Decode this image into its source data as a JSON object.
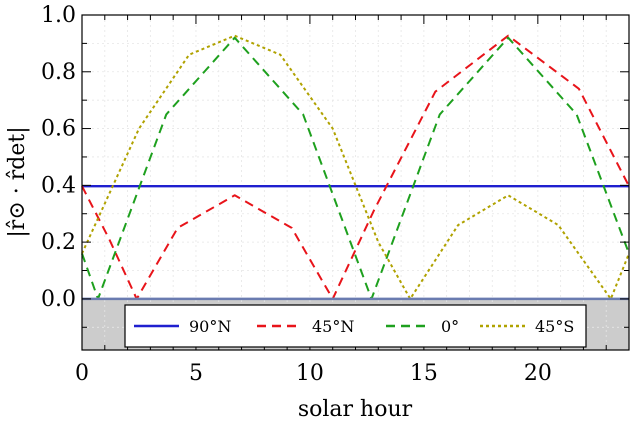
{
  "chart_data": {
    "type": "line",
    "xlabel": "solar hour",
    "ylabel": "|r̂⊙ · r̂det|",
    "xlim": [
      0,
      24
    ],
    "ylim": [
      -0.18,
      1.0
    ],
    "x_ticks": [
      0,
      5,
      10,
      15,
      20
    ],
    "y_ticks": [
      0.0,
      0.2,
      0.4,
      0.6,
      0.8,
      1.0
    ],
    "x_tick_labels": [
      "0",
      "5",
      "10",
      "15",
      "20"
    ],
    "y_tick_labels": [
      "0.0",
      "0.2",
      "0.4",
      "0.6",
      "0.8",
      "1.0"
    ],
    "grid": true,
    "legend_position": "bottom-center",
    "shaded_region": {
      "y_from": -0.18,
      "y_to": 0.0,
      "color": "#cccccc"
    },
    "series": [
      {
        "name": "90°N",
        "color": "#1f1fcf",
        "style": "solid",
        "x": [
          0,
          24
        ],
        "y": [
          0.397,
          0.397
        ]
      },
      {
        "name": "45°N",
        "color": "#e8141a",
        "style": "dashed",
        "x": [
          0,
          1.2,
          2.4,
          4.2,
          6.7,
          9.2,
          11.0,
          12.8,
          15.5,
          18.7,
          21.8,
          24
        ],
        "y": [
          0.397,
          0.21,
          0.0,
          0.25,
          0.365,
          0.25,
          0.0,
          0.31,
          0.73,
          0.927,
          0.74,
          0.397
        ]
      },
      {
        "name": "0°",
        "color": "#1ea01e",
        "style": "dashed",
        "x": [
          0,
          0.7,
          3.7,
          6.7,
          9.7,
          12.7,
          15.7,
          18.7,
          21.7,
          24
        ],
        "y": [
          0.16,
          0.0,
          0.65,
          0.92,
          0.65,
          0.0,
          0.65,
          0.92,
          0.65,
          0.16
        ]
      },
      {
        "name": "45°S",
        "color": "#b0a200",
        "style": "dotted",
        "x": [
          0,
          2.5,
          4.7,
          6.7,
          8.7,
          11.0,
          13.0,
          14.4,
          16.5,
          18.7,
          20.9,
          23.2,
          24
        ],
        "y": [
          0.16,
          0.6,
          0.86,
          0.927,
          0.86,
          0.6,
          0.2,
          0.0,
          0.26,
          0.365,
          0.26,
          0.0,
          0.16
        ]
      }
    ]
  }
}
